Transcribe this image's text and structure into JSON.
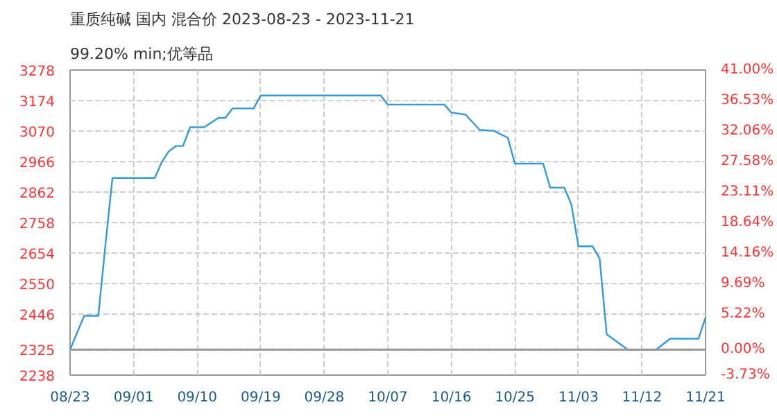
{
  "chart_data": {
    "type": "line",
    "title": "重质纯碱 国内 混合价 2023-08-23 - 2023-11-21",
    "subtitle": "99.20% min;优等品",
    "x": [
      "2023-08-23",
      "2023-08-25",
      "2023-08-27",
      "2023-08-28",
      "2023-08-29",
      "2023-09-04",
      "2023-09-05",
      "2023-09-06",
      "2023-09-07",
      "2023-09-08",
      "2023-09-09",
      "2023-09-11",
      "2023-09-13",
      "2023-09-14",
      "2023-09-15",
      "2023-09-18",
      "2023-09-19",
      "2023-10-06",
      "2023-10-07",
      "2023-10-15",
      "2023-10-16",
      "2023-10-18",
      "2023-10-20",
      "2023-10-22",
      "2023-10-24",
      "2023-10-25",
      "2023-10-29",
      "2023-10-30",
      "2023-11-01",
      "2023-11-02",
      "2023-11-03",
      "2023-11-05",
      "2023-11-06",
      "2023-11-07",
      "2023-11-10",
      "2023-11-14",
      "2023-11-16",
      "2023-11-20",
      "2023-11-21"
    ],
    "series": [
      {
        "color": "#3399dd",
        "values": [
          2325,
          2440,
          2440,
          2680,
          2910,
          2910,
          2965,
          3001,
          3019,
          3019,
          3083,
          3083,
          3115,
          3115,
          3147,
          3147,
          3191,
          3191,
          3160,
          3160,
          3133,
          3126,
          3074,
          3071,
          3047,
          2959,
          2959,
          2877,
          2877,
          2819,
          2677,
          2677,
          2636,
          2377,
          2325,
          2325,
          2362,
          2362,
          2435
        ]
      }
    ],
    "xlim": [
      "2023-08-23",
      "2023-11-21"
    ],
    "xticks": [
      {
        "value": "2023-08-23",
        "label": "08/23"
      },
      {
        "value": "2023-09-01",
        "label": "09/01"
      },
      {
        "value": "2023-09-10",
        "label": "09/10"
      },
      {
        "value": "2023-09-19",
        "label": "09/19"
      },
      {
        "value": "2023-09-28",
        "label": "09/28"
      },
      {
        "value": "2023-10-07",
        "label": "10/07"
      },
      {
        "value": "2023-10-16",
        "label": "10/16"
      },
      {
        "value": "2023-10-25",
        "label": "10/25"
      },
      {
        "value": "2023-11-03",
        "label": "11/03"
      },
      {
        "value": "2023-11-12",
        "label": "11/12"
      },
      {
        "value": "2023-11-21",
        "label": "11/21"
      }
    ],
    "ylim": [
      2238,
      3278
    ],
    "yticks": [
      2238,
      2325,
      2446,
      2550,
      2654,
      2758,
      2862,
      2966,
      3070,
      3174,
      3278
    ],
    "y2lim": [
      -3.73,
      41.0
    ],
    "y2ticks": [
      {
        "value": -3.73,
        "label": "-3.73%"
      },
      {
        "value": 0,
        "label": "0.00%"
      },
      {
        "value": 5.22,
        "label": "5.22%"
      },
      {
        "value": 9.69,
        "label": "9.69%"
      },
      {
        "value": 14.16,
        "label": "14.16%"
      },
      {
        "value": 18.64,
        "label": "18.64%"
      },
      {
        "value": 23.11,
        "label": "23.11%"
      },
      {
        "value": 27.58,
        "label": "27.58%"
      },
      {
        "value": 32.06,
        "label": "32.06%"
      },
      {
        "value": 36.53,
        "label": "36.53%"
      },
      {
        "value": 41.0,
        "label": "41.00%"
      }
    ],
    "ref_lines": [
      {
        "axis": "y",
        "value": 2325,
        "color": "#999999"
      }
    ],
    "grid": true,
    "line_style": "solid"
  }
}
